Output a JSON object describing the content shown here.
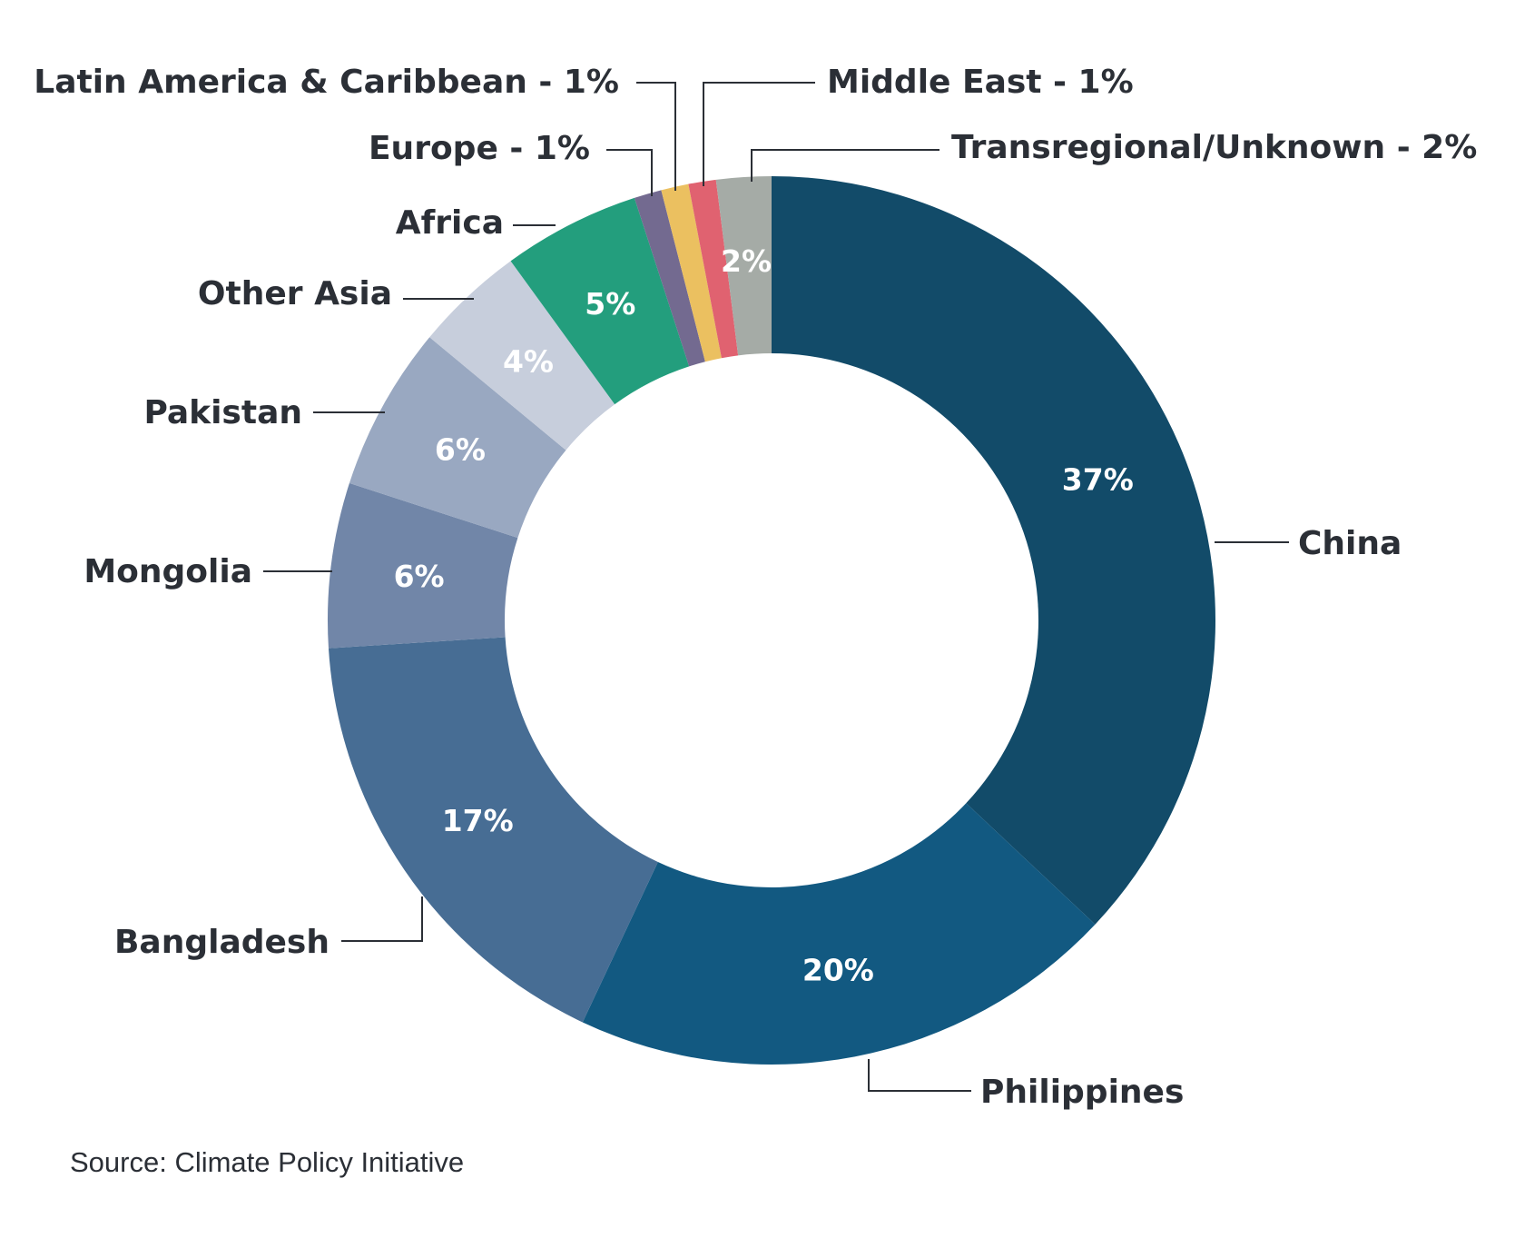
{
  "chart_data": {
    "type": "pie",
    "style": "donut",
    "title": "",
    "slices": [
      {
        "label": "China",
        "value": 37,
        "value_label": "37%",
        "color": "#124b69"
      },
      {
        "label": "Philippines",
        "value": 20,
        "value_label": "20%",
        "color": "#125981"
      },
      {
        "label": "Bangladesh",
        "value": 17,
        "value_label": "17%",
        "color": "#476d94"
      },
      {
        "label": "Mongolia",
        "value": 6,
        "value_label": "6%",
        "color": "#7186a8"
      },
      {
        "label": "Pakistan",
        "value": 6,
        "value_label": "6%",
        "color": "#99a8c1"
      },
      {
        "label": "Other Asia",
        "value": 4,
        "value_label": "4%",
        "color": "#c7cedc"
      },
      {
        "label": "Africa",
        "value": 5,
        "value_label": "5%",
        "color": "#239e7d"
      },
      {
        "label": "Europe - 1%",
        "value": 1,
        "value_label": "",
        "color": "#736a90"
      },
      {
        "label": "Latin America & Caribbean - 1%",
        "value": 1,
        "value_label": "",
        "color": "#ebc060"
      },
      {
        "label": "Middle East - 1%",
        "value": 1,
        "value_label": "",
        "color": "#e06270"
      },
      {
        "label": "Transregional/Unknown - 2%",
        "value": 2,
        "value_label": "2%",
        "color": "#a5aba6"
      }
    ]
  },
  "source": "Source: Climate Policy Initiative"
}
